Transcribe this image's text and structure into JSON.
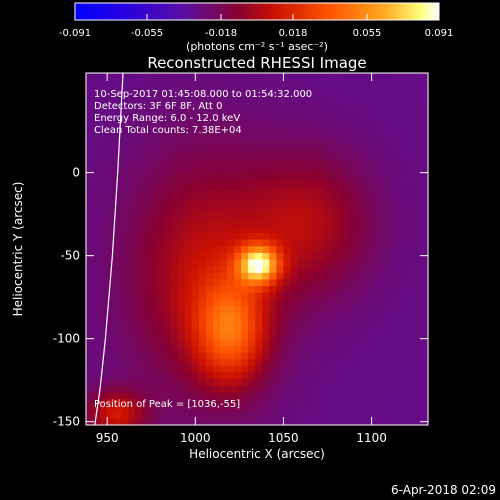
{
  "chart_data": {
    "type": "heatmap",
    "title": "Reconstructed RHESSI Image",
    "xlabel": "Heliocentric X (arcsec)",
    "ylabel": "Heliocentric Y (arcsec)",
    "xlim": [
      938,
      1132
    ],
    "ylim": [
      -152,
      60
    ],
    "x_ticks": [
      950,
      1000,
      1050,
      1100
    ],
    "x_tick_labels": [
      "950",
      "1000",
      "1050",
      "1100"
    ],
    "y_ticks": [
      0,
      -50,
      -100,
      -150
    ],
    "y_tick_labels": [
      "0",
      "-50",
      "-100",
      "-150"
    ],
    "colorbar": {
      "range": [
        -0.091,
        0.091
      ],
      "ticks": [
        -0.091,
        -0.055,
        -0.018,
        0.018,
        0.055,
        0.091
      ],
      "tick_labels": [
        "-0.091",
        "-0.055",
        "-0.018",
        "0.018",
        "0.055",
        "0.091"
      ],
      "unit_label": "(photons cm⁻² s⁻¹ asec⁻²)"
    },
    "info_lines": [
      "10-Sep-2017 01:45:08.000 to 01:54:32.000",
      "Detectors: 3F 6F 8F, Att 0",
      "Energy Range: 6.0 - 12.0 keV",
      "Clean    Total counts: 7.38E+04"
    ],
    "peak_label": "Position of Peak = [1036,-55]",
    "peak_position": [
      1036,
      -55
    ],
    "sources": [
      {
        "x": 1036,
        "y": -55,
        "sigma_x": 8,
        "sigma_y": 8,
        "amp": 0.091
      },
      {
        "x": 1020,
        "y": -95,
        "sigma_x": 14,
        "sigma_y": 22,
        "amp": 0.055
      },
      {
        "x": 1005,
        "y": -60,
        "sigma_x": 30,
        "sigma_y": 50,
        "amp": 0.035
      },
      {
        "x": 1065,
        "y": -30,
        "sigma_x": 25,
        "sigma_y": 30,
        "amp": 0.03
      },
      {
        "x": 955,
        "y": -145,
        "sigma_x": 12,
        "sigma_y": 10,
        "amp": 0.04
      }
    ],
    "limb_curve": [
      [
        959,
        60
      ],
      [
        956,
        0
      ],
      [
        953,
        -50
      ],
      [
        949,
        -100
      ],
      [
        946,
        -130
      ],
      [
        943,
        -152
      ]
    ],
    "colors": {
      "colorbar_stops": [
        "#0000ff",
        "#3300cc",
        "#660099",
        "#990000",
        "#ff3300",
        "#ff9900",
        "#ffff66",
        "#ffffff"
      ],
      "axis": "#ffffff",
      "background": "#000000"
    }
  },
  "footer_timestamp": "6-Apr-2018 02:09"
}
